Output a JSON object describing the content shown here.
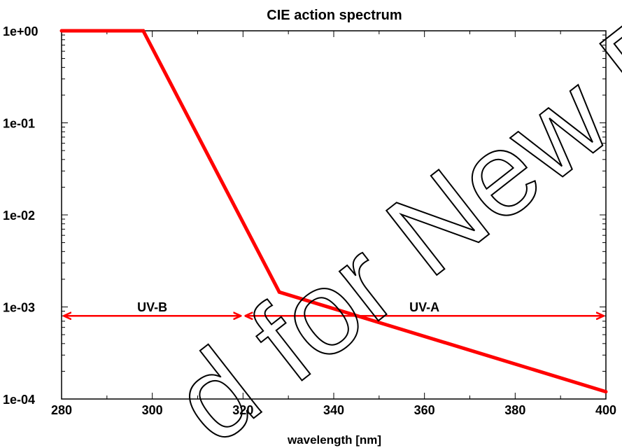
{
  "chart_data": {
    "type": "line",
    "title": "CIE action spectrum",
    "xlabel": "wavelength [nm]",
    "ylabel": "",
    "xlim": [
      280,
      400
    ],
    "ylim": [
      0.0001,
      1
    ],
    "yscale": "log",
    "grid": false,
    "x_ticks": [
      "280",
      "300",
      "320",
      "340",
      "360",
      "380",
      "400"
    ],
    "y_ticks": [
      "1e+00",
      "1e-01",
      "1e-02",
      "1e-03",
      "1e-04"
    ],
    "series": [
      {
        "color": "#ff0000",
        "x": [
          280,
          298,
          328,
          400
        ],
        "y": [
          1.0,
          1.0,
          0.00145,
          0.00012
        ]
      }
    ],
    "annotations": [
      {
        "label": "UV-B",
        "x_range": [
          280,
          320
        ],
        "y": 0.0008
      },
      {
        "label": "UV-A",
        "x_range": [
          320,
          400
        ],
        "y": 0.0008
      }
    ]
  },
  "watermark": "d for New D",
  "colors": {
    "series": "#ff0000",
    "axis": "#000000",
    "watermark": "#000000"
  }
}
